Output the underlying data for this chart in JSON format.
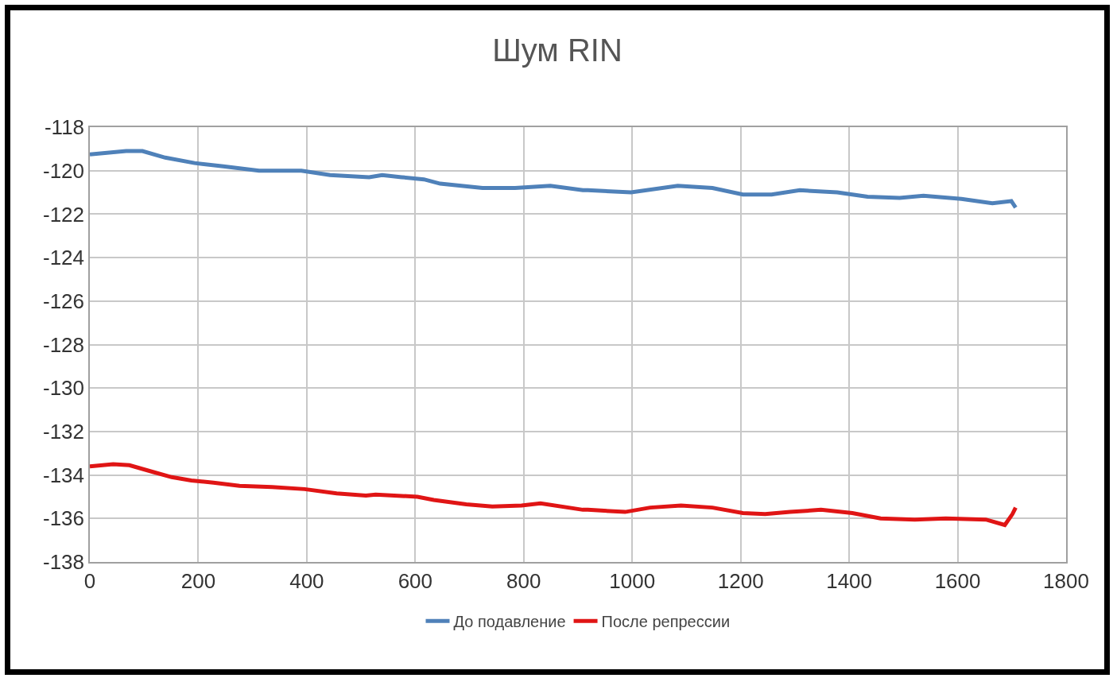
{
  "chart_data": {
    "type": "line",
    "title": "Шум RIN",
    "xlim": [
      0,
      1800
    ],
    "xticks": [
      0,
      200,
      400,
      600,
      800,
      1000,
      1200,
      1400,
      1600,
      1800
    ],
    "ylim": [
      -138,
      -118
    ],
    "yticks": [
      -138,
      -136,
      -134,
      -132,
      -130,
      -128,
      -126,
      -124,
      -122,
      -120,
      -118
    ],
    "grid": true,
    "legend": "bottom",
    "marker": "none",
    "line_style": "solid",
    "series": [
      {
        "name": "До подавление",
        "color": "#4f81b9",
        "x": [
          0,
          67,
          97,
          139,
          193,
          246,
          312,
          390,
          443,
          515,
          539,
          575,
          616,
          646,
          724,
          784,
          849,
          909,
          918,
          998,
          1084,
          1148,
          1204,
          1257,
          1309,
          1378,
          1434,
          1493,
          1537,
          1607,
          1664,
          1699,
          1707
        ],
        "values": [
          -119.25,
          -119.1,
          -119.1,
          -119.4,
          -119.65,
          -119.8,
          -120.0,
          -120.0,
          -120.2,
          -120.3,
          -120.2,
          -120.3,
          -120.4,
          -120.6,
          -120.8,
          -120.8,
          -120.7,
          -120.9,
          -120.9,
          -121.0,
          -120.7,
          -120.8,
          -121.1,
          -121.1,
          -120.9,
          -121.0,
          -121.2,
          -121.25,
          -121.15,
          -121.3,
          -121.5,
          -121.4,
          -121.7
        ]
      },
      {
        "name": "После репрессии",
        "color": "#e01515",
        "x": [
          0,
          43,
          73,
          115,
          151,
          187,
          228,
          276,
          336,
          396,
          455,
          509,
          527,
          604,
          634,
          694,
          742,
          796,
          831,
          909,
          918,
          987,
          1033,
          1090,
          1148,
          1204,
          1245,
          1291,
          1348,
          1406,
          1458,
          1521,
          1578,
          1652,
          1687,
          1701,
          1707
        ],
        "values": [
          -133.6,
          -133.5,
          -133.55,
          -133.85,
          -134.1,
          -134.25,
          -134.35,
          -134.5,
          -134.55,
          -134.65,
          -134.85,
          -134.95,
          -134.9,
          -135.0,
          -135.15,
          -135.35,
          -135.45,
          -135.4,
          -135.3,
          -135.6,
          -135.6,
          -135.7,
          -135.5,
          -135.4,
          -135.5,
          -135.75,
          -135.8,
          -135.7,
          -135.6,
          -135.75,
          -136.0,
          -136.05,
          -136.0,
          -136.05,
          -136.3,
          -135.8,
          -135.5
        ]
      }
    ]
  }
}
